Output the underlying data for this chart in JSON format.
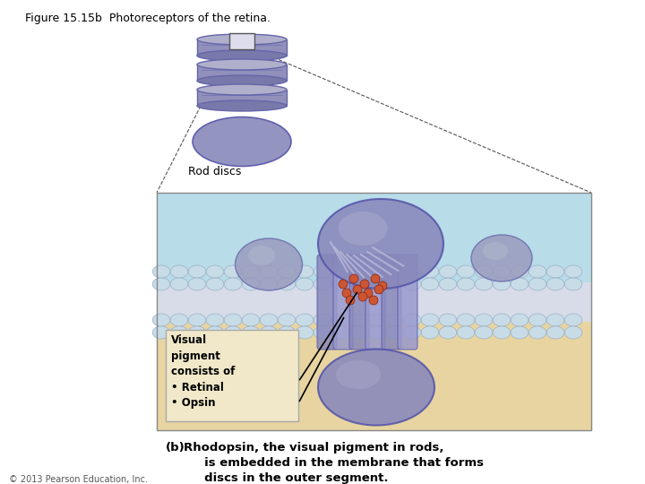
{
  "title": "Figure 15.15b  Photoreceptors of the retina.",
  "title_fontsize": 9,
  "copyright": "© 2013 Pearson Education, Inc.",
  "rod_discs_label": "Rod discs",
  "visual_pigment_text": "Visual\npigment\nconsists of\n• Retinal\n• Opsin",
  "caption_b": "(b)",
  "caption_text": "Rhodopsin, the visual pigment in rods,\n     is embedded in the membrane that forms\n     discs in the outer segment.",
  "bg_color": "#ffffff",
  "diag_bg_top": "#b8dce8",
  "diag_bg_bot": "#e8d8a8",
  "rod_color1": "#8888bb",
  "rod_color2": "#aaaacc",
  "membrane_bead_color": "#c8dce8",
  "membrane_bead_edge": "#9ab8cc",
  "membrane_inner_color": "#d0dce8",
  "protein_color": "#8888bb",
  "dot_color": "#cc6644",
  "ann_bg": "#f0e8c8",
  "arrow_color": "#111111"
}
